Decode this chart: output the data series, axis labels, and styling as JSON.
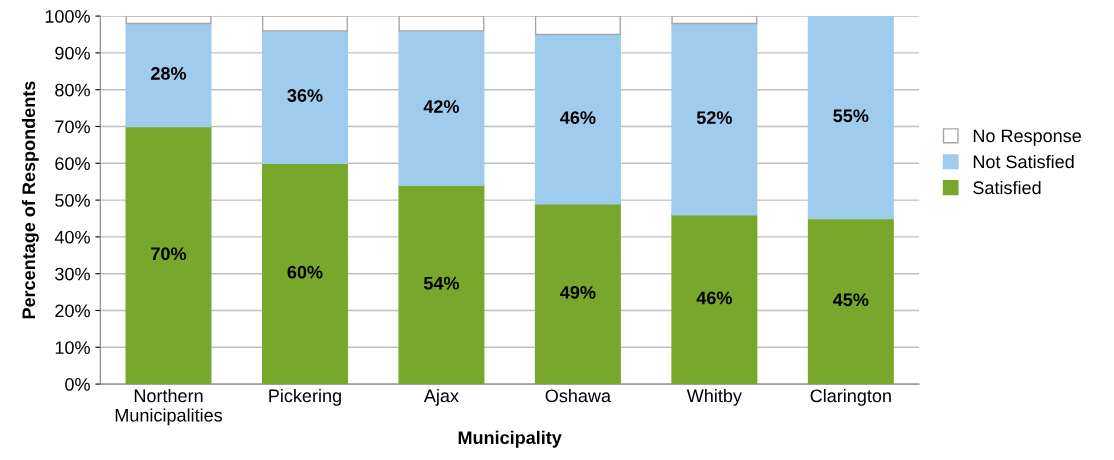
{
  "chart_data": {
    "type": "bar",
    "stacked": true,
    "xlabel": "Municipality",
    "ylabel": "Percentage of Respondents",
    "categories": [
      "Northern\nMunicipalities",
      "Pickering",
      "Ajax",
      "Oshawa",
      "Whitby",
      "Clarington"
    ],
    "series": [
      {
        "name": "Satisfied",
        "color": "#77a82b",
        "values": [
          70,
          60,
          54,
          49,
          46,
          45
        ],
        "value_labels": [
          "70%",
          "60%",
          "54%",
          "49%",
          "46%",
          "45%"
        ]
      },
      {
        "name": "Not Satisfied",
        "color": "#9fcbec",
        "values": [
          28,
          36,
          42,
          46,
          52,
          55
        ],
        "value_labels": [
          "28%",
          "36%",
          "42%",
          "46%",
          "52%",
          "55%"
        ]
      },
      {
        "name": "No Response",
        "color": "#ffffff",
        "values": [
          2,
          4,
          4,
          5,
          2,
          0
        ]
      }
    ],
    "ylim": [
      0,
      100
    ],
    "yticks": [
      {
        "value": 0,
        "label": "0%"
      },
      {
        "value": 10,
        "label": "10%"
      },
      {
        "value": 20,
        "label": "20%"
      },
      {
        "value": 30,
        "label": "30%"
      },
      {
        "value": 40,
        "label": "40%"
      },
      {
        "value": 50,
        "label": "50%"
      },
      {
        "value": 60,
        "label": "60%"
      },
      {
        "value": 70,
        "label": "70%"
      },
      {
        "value": 80,
        "label": "80%"
      },
      {
        "value": 90,
        "label": "90%"
      },
      {
        "value": 100,
        "label": "100%"
      }
    ],
    "grid": "y",
    "legend": "right"
  }
}
